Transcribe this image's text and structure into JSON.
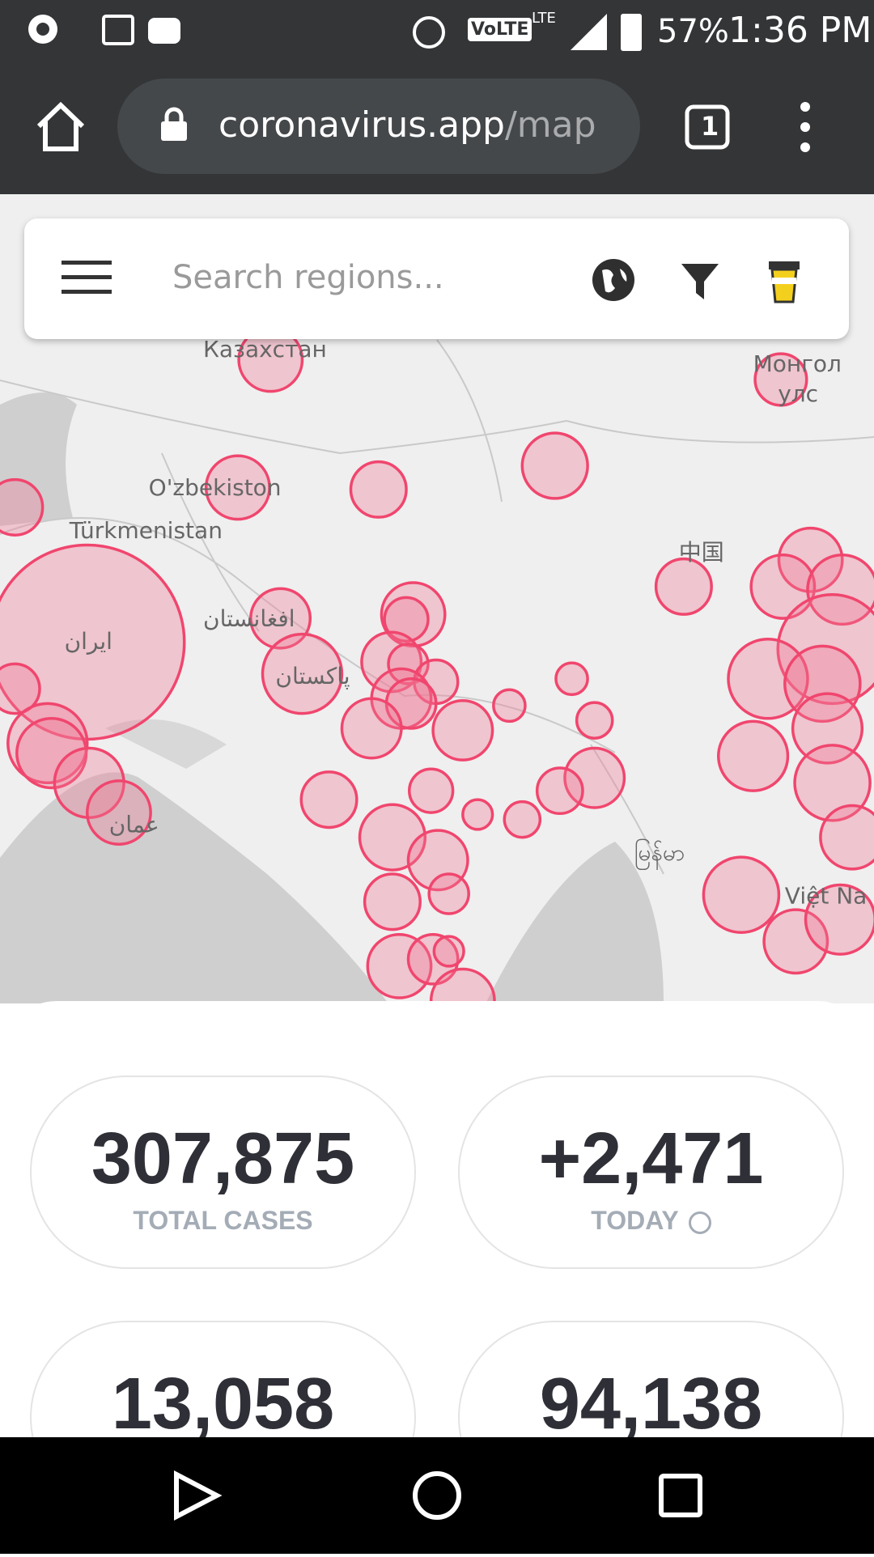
{
  "status_bar": {
    "network": "VoLTE",
    "lte": "LTE",
    "battery": "57%",
    "time": "1:36 PM"
  },
  "browser": {
    "url_host": "coronavirus.app",
    "url_path": "/map",
    "tab_count": "1"
  },
  "search": {
    "placeholder": "Search regions..."
  },
  "map_labels": [
    "Казахстан",
    "Монгол",
    "улс",
    "O'zbekiston",
    "Türkmenistan",
    "中国",
    "ایران",
    "افغانستان",
    "پاکستان",
    "عمان",
    "မြန်မာ",
    "Việt Na"
  ],
  "stats": [
    {
      "value": "307,875",
      "label": "TOTAL CASES"
    },
    {
      "value": "+2,471",
      "label": "TODAY"
    },
    {
      "value": "13,058"
    },
    {
      "value": "94,138"
    }
  ]
}
